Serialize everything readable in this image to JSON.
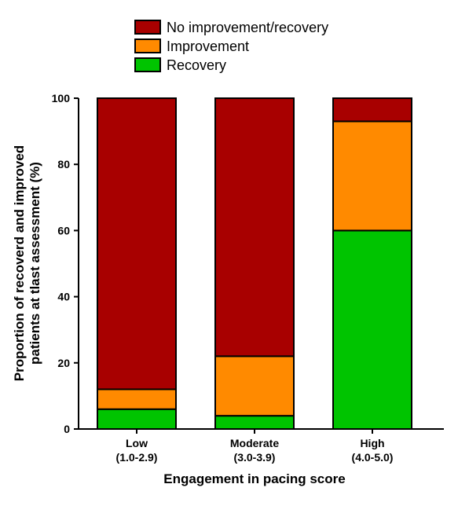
{
  "chart_data": {
    "type": "bar",
    "stacked": true,
    "categories": [
      {
        "label": "Low",
        "sublabel": "(1.0-2.9)"
      },
      {
        "label": "Moderate",
        "sublabel": "(3.0-3.9)"
      },
      {
        "label": "High",
        "sublabel": "(4.0-5.0)"
      }
    ],
    "series": [
      {
        "name": "Recovery",
        "color": "#00c400",
        "values": [
          6,
          4,
          60
        ]
      },
      {
        "name": "Improvement",
        "color": "#ff8a00",
        "values": [
          6,
          18,
          33
        ]
      },
      {
        "name": "No improvement/recovery",
        "color": "#a80000",
        "values": [
          88,
          78,
          7
        ]
      }
    ],
    "legend_order": [
      "No improvement/recovery",
      "Improvement",
      "Recovery"
    ],
    "legend_position": "top",
    "xlabel": "Engagement in pacing score",
    "ylabel_lines": [
      "Proportion of recoverd and improved",
      "patients at tlast assessment (%)"
    ],
    "ylim": [
      0,
      100
    ],
    "yticks": [
      0,
      20,
      40,
      60,
      80,
      100
    ],
    "grid": false
  }
}
